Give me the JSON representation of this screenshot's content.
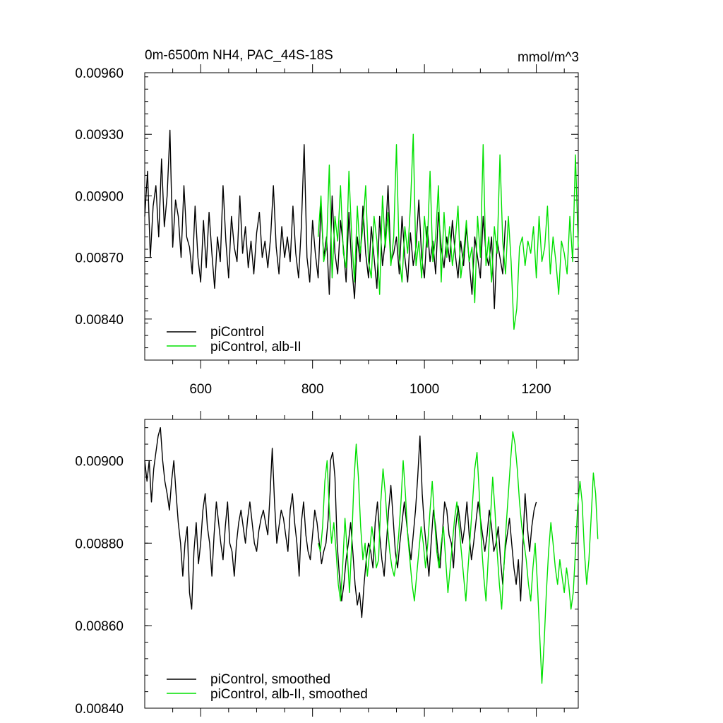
{
  "colors": {
    "series_black": "#000000",
    "series_green": "#00e000",
    "axes": "#000000",
    "background": "#ffffff"
  },
  "chart_data": [
    {
      "type": "line",
      "title": "0m-6500m NH4, PAC_44S-18S",
      "units": "mmol/m^3",
      "xlabel": "",
      "ylabel": "",
      "xlim": [
        500,
        1275
      ],
      "ylim": [
        0.0082,
        0.0096
      ],
      "x_ticks": [
        600,
        800,
        1000,
        1200
      ],
      "x_tick_labels": [
        "600",
        "800",
        "1000",
        "1200"
      ],
      "y_ticks": [
        0.0084,
        0.0087,
        0.009,
        0.0093,
        0.0096
      ],
      "y_tick_labels": [
        "0.00840",
        "0.00870",
        "0.00900",
        "0.00930",
        "0.00960"
      ],
      "grid": false,
      "legend_position": "bottom-left",
      "series": [
        {
          "name": "piControl",
          "color": "#000000",
          "x_start": 500,
          "x_step": 5,
          "values": [
            0.0089,
            0.00912,
            0.0087,
            0.00895,
            0.00905,
            0.0088,
            0.00918,
            0.00885,
            0.009,
            0.00932,
            0.00875,
            0.00898,
            0.0089,
            0.0087,
            0.00905,
            0.0088,
            0.00875,
            0.00862,
            0.00895,
            0.0087,
            0.00858,
            0.00888,
            0.00865,
            0.00892,
            0.00872,
            0.00855,
            0.0088,
            0.00868,
            0.00905,
            0.00878,
            0.0086,
            0.0089,
            0.00875,
            0.00868,
            0.009,
            0.00872,
            0.00885,
            0.00865,
            0.00878,
            0.00862,
            0.00882,
            0.00892,
            0.0087,
            0.00878,
            0.00865,
            0.0088,
            0.00905,
            0.00875,
            0.00862,
            0.00885,
            0.0087,
            0.0088,
            0.00868,
            0.00895,
            0.00872,
            0.0086,
            0.00885,
            0.00925,
            0.0087,
            0.00858,
            0.00888,
            0.00872,
            0.0086,
            0.00895,
            0.0087,
            0.0088,
            0.00852,
            0.009,
            0.00872,
            0.00862,
            0.00888,
            0.00875,
            0.00858,
            0.00892,
            0.00866,
            0.0085,
            0.0088,
            0.00868,
            0.00895,
            0.00872,
            0.0086,
            0.00885,
            0.0087,
            0.00855,
            0.0089,
            0.00866,
            0.00878,
            0.00905,
            0.00868,
            0.00872,
            0.0088,
            0.00862,
            0.0089,
            0.0087,
            0.00858,
            0.00882,
            0.00866,
            0.00875,
            0.00898,
            0.0087,
            0.0086,
            0.00885,
            0.00868,
            0.00878,
            0.00862,
            0.00892,
            0.00875,
            0.00865,
            0.0088,
            0.00868,
            0.00888,
            0.00872,
            0.0086,
            0.00878,
            0.00866,
            0.00885,
            0.00868,
            0.00852,
            0.0088,
            0.0087,
            0.0086,
            0.0089,
            0.00872,
            0.00866,
            0.0088,
            0.00845,
            0.00878,
            0.0087,
            0.00862,
            0.00888
          ]
        },
        {
          "name": "piControl, alb-II",
          "color": "#00e000",
          "x_start": 810,
          "x_step": 5,
          "values": [
            0.0088,
            0.009,
            0.00868,
            0.00875,
            0.00915,
            0.0086,
            0.0089,
            0.00878,
            0.00905,
            0.00872,
            0.00865,
            0.00912,
            0.0088,
            0.00858,
            0.00895,
            0.00872,
            0.00885,
            0.00905,
            0.00868,
            0.0086,
            0.0089,
            0.00878,
            0.00852,
            0.009,
            0.00875,
            0.00892,
            0.00866,
            0.0088,
            0.00925,
            0.0087,
            0.00858,
            0.00885,
            0.00872,
            0.00895,
            0.0093,
            0.00866,
            0.00878,
            0.0086,
            0.0089,
            0.00875,
            0.00912,
            0.00868,
            0.0088,
            0.00905,
            0.00858,
            0.00892,
            0.0087,
            0.00885,
            0.00866,
            0.00878,
            0.00895,
            0.0086,
            0.00872,
            0.00888,
            0.00868,
            0.00875,
            0.00848,
            0.0089,
            0.0087,
            0.00925,
            0.00866,
            0.0088,
            0.00858,
            0.00885,
            0.00872,
            0.0092,
            0.00878,
            0.00862,
            0.0089,
            0.00868,
            0.00835,
            0.00845,
            0.00875,
            0.0088,
            0.00866,
            0.00878,
            0.00872,
            0.00885,
            0.0086,
            0.0089,
            0.00868,
            0.00875,
            0.00895,
            0.00862,
            0.0088,
            0.00868,
            0.00852,
            0.00878,
            0.00872,
            0.00862,
            0.0089,
            0.00868,
            0.0092,
            0.00875
          ]
        }
      ]
    },
    {
      "type": "line",
      "title": "",
      "units": "",
      "xlabel": "",
      "ylabel": "",
      "xlim": [
        500,
        1275
      ],
      "ylim": [
        0.0084,
        0.0091
      ],
      "x_ticks": [
        600,
        800,
        1000,
        1200
      ],
      "x_tick_labels": [],
      "y_ticks": [
        0.0084,
        0.0086,
        0.0088,
        0.009
      ],
      "y_tick_labels": [
        "0.00840",
        "0.00860",
        "0.00880",
        "0.00900"
      ],
      "grid": false,
      "legend_position": "bottom-left",
      "series": [
        {
          "name": "piControl, smoothed",
          "color": "#000000",
          "x_start": 500,
          "x_step": 4,
          "values": [
            0.009,
            0.00895,
            0.009,
            0.0089,
            0.00898,
            0.00902,
            0.00906,
            0.00908,
            0.009,
            0.00895,
            0.00892,
            0.00888,
            0.00895,
            0.009,
            0.00892,
            0.00885,
            0.0088,
            0.00872,
            0.0088,
            0.00884,
            0.00868,
            0.00864,
            0.00878,
            0.00885,
            0.00875,
            0.0088,
            0.00888,
            0.00892,
            0.00884,
            0.0088,
            0.00872,
            0.00882,
            0.0089,
            0.00885,
            0.0088,
            0.00876,
            0.00884,
            0.0089,
            0.0088,
            0.00878,
            0.00872,
            0.0088,
            0.00885,
            0.00888,
            0.00884,
            0.0088,
            0.00886,
            0.0089,
            0.00885,
            0.0088,
            0.00878,
            0.00883,
            0.00886,
            0.00888,
            0.00885,
            0.00882,
            0.00892,
            0.00903,
            0.0089,
            0.0088,
            0.00884,
            0.00888,
            0.00886,
            0.00882,
            0.00878,
            0.00888,
            0.00892,
            0.00885,
            0.0088,
            0.00872,
            0.00885,
            0.0089,
            0.00882,
            0.00878,
            0.00876,
            0.00882,
            0.00888,
            0.00885,
            0.0088,
            0.00875,
            0.00878,
            0.0088,
            0.00886,
            0.009,
            0.00902,
            0.00896,
            0.0088,
            0.00872,
            0.00866,
            0.0087,
            0.00876,
            0.0088,
            0.00885,
            0.00878,
            0.0087,
            0.00865,
            0.00868,
            0.00862,
            0.0087,
            0.00876,
            0.0088,
            0.00878,
            0.00874,
            0.00885,
            0.0089,
            0.00882,
            0.00876,
            0.00872,
            0.0088,
            0.00888,
            0.00894,
            0.00886,
            0.00878,
            0.00874,
            0.0088,
            0.00885,
            0.0089,
            0.00885,
            0.0088,
            0.00876,
            0.00882,
            0.00888,
            0.00896,
            0.00906,
            0.00892,
            0.00884,
            0.00878,
            0.00872,
            0.0088,
            0.00888,
            0.00884,
            0.00878,
            0.00874,
            0.00882,
            0.0089,
            0.00888,
            0.00882,
            0.0088,
            0.00874,
            0.00884,
            0.00889,
            0.00885,
            0.0088,
            0.00884,
            0.0089,
            0.00882,
            0.00876,
            0.0088,
            0.00885,
            0.0089,
            0.00886,
            0.00882,
            0.00878,
            0.00882,
            0.00888,
            0.00884,
            0.00878,
            0.0088,
            0.00884,
            0.00876,
            0.0087,
            0.00878,
            0.00882,
            0.00886,
            0.0088,
            0.00874,
            0.0087,
            0.00876,
            0.00866,
            0.0088,
            0.00892,
            0.00884,
            0.00878,
            0.00884,
            0.00888,
            0.0089
          ]
        },
        {
          "name": "piControl, alb-II, smoothed",
          "color": "#00e000",
          "x_start": 810,
          "x_step": 4,
          "values": [
            0.0088,
            0.00878,
            0.00884,
            0.00895,
            0.009,
            0.00888,
            0.0088,
            0.00885,
            0.00878,
            0.0087,
            0.00866,
            0.00875,
            0.00886,
            0.00878,
            0.00868,
            0.0088,
            0.00895,
            0.00904,
            0.00896,
            0.00884,
            0.00876,
            0.0088,
            0.00872,
            0.00878,
            0.00884,
            0.0088,
            0.00874,
            0.00876,
            0.0089,
            0.00898,
            0.00892,
            0.00884,
            0.00878,
            0.00874,
            0.00872,
            0.00876,
            0.00882,
            0.0089,
            0.009,
            0.00892,
            0.00882,
            0.00876,
            0.0087,
            0.00866,
            0.00872,
            0.00878,
            0.00884,
            0.0088,
            0.00874,
            0.0088,
            0.00888,
            0.00895,
            0.00886,
            0.00878,
            0.00874,
            0.0088,
            0.00884,
            0.00876,
            0.00868,
            0.00874,
            0.0088,
            0.00886,
            0.0089,
            0.00884,
            0.00878,
            0.00872,
            0.00866,
            0.00874,
            0.00882,
            0.0089,
            0.00898,
            0.00902,
            0.00892,
            0.0088,
            0.00872,
            0.00866,
            0.00876,
            0.00886,
            0.00896,
            0.00888,
            0.00878,
            0.0087,
            0.00864,
            0.00874,
            0.00884,
            0.00892,
            0.009,
            0.00907,
            0.00904,
            0.00898,
            0.0089,
            0.00884,
            0.0088,
            0.00876,
            0.0087,
            0.00866,
            0.00874,
            0.0088,
            0.0087,
            0.00858,
            0.00846,
            0.00856,
            0.00868,
            0.00878,
            0.00885,
            0.0088,
            0.00874,
            0.0087,
            0.00876,
            0.00872,
            0.00868,
            0.00874,
            0.0087,
            0.00864,
            0.00868,
            0.00878,
            0.00889,
            0.00895,
            0.0089,
            0.00878,
            0.0087,
            0.00876,
            0.00886,
            0.00897,
            0.00892,
            0.00881
          ]
        }
      ]
    }
  ]
}
